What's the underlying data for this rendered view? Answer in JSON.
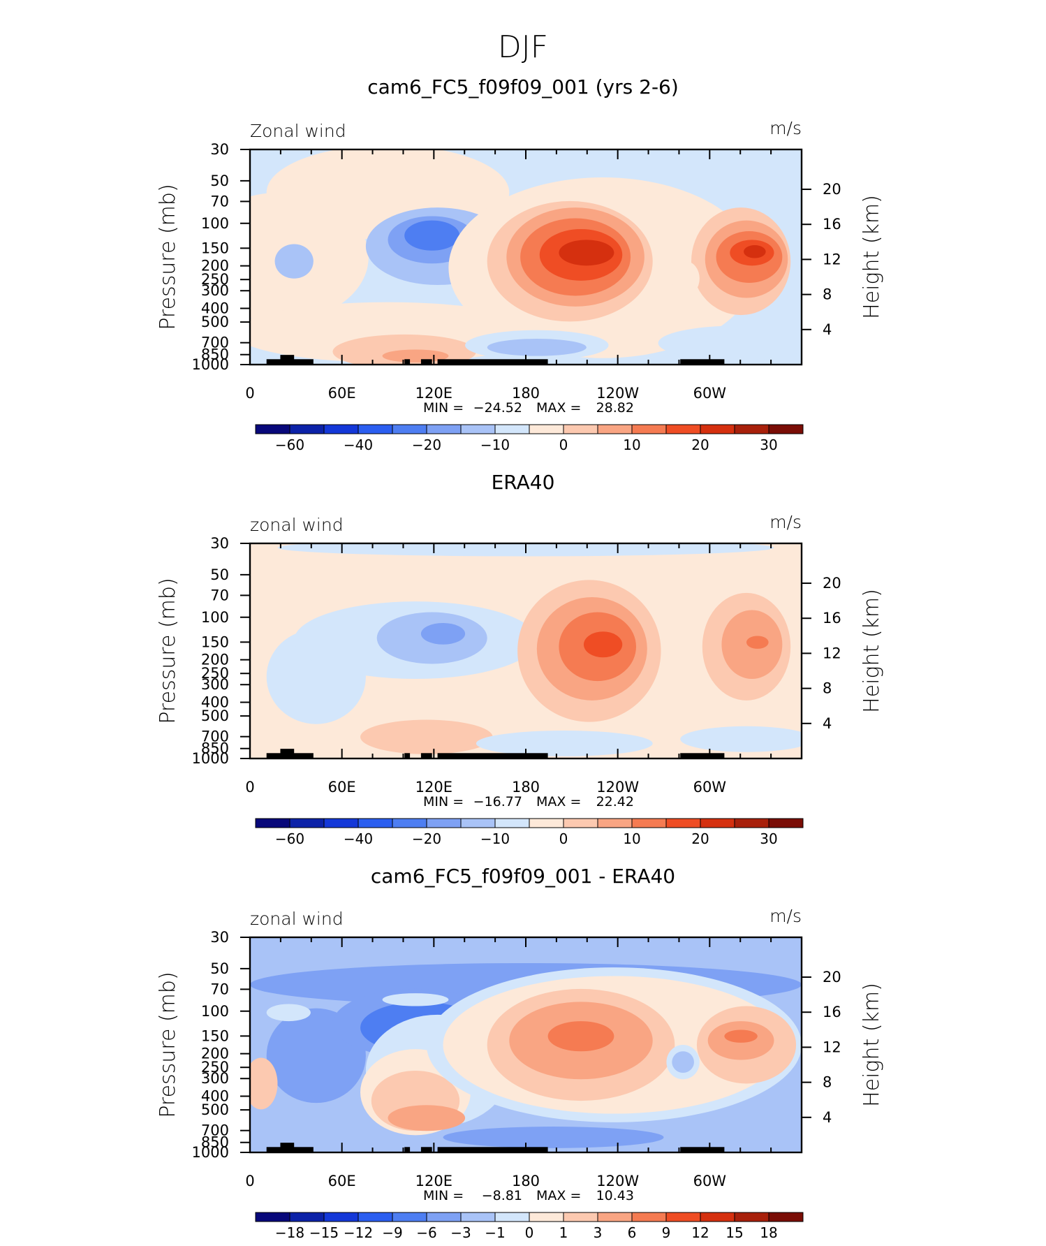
{
  "page_title": "DJF",
  "colors": {
    "main_scale": [
      "#08087a",
      "#0c22a8",
      "#1438d8",
      "#2b5ef0",
      "#4e7ef2",
      "#7ea1f4",
      "#a9c3f7",
      "#d3e6fb",
      "#fde9d9",
      "#fcc9b0",
      "#f9a583",
      "#f57b52",
      "#ef4d24",
      "#d5300f",
      "#a8200b",
      "#7a0d06"
    ],
    "diff_scale": [
      "#08087a",
      "#0c22a8",
      "#1438d8",
      "#2b5ef0",
      "#4e7ef2",
      "#7ea1f4",
      "#a9c3f7",
      "#d3e6fb",
      "#fde9d9",
      "#fcc9b0",
      "#f9a583",
      "#f57b52",
      "#ef4d24",
      "#d5300f",
      "#a8200b",
      "#7a0d06"
    ],
    "topography": "#000000"
  },
  "chart_data": [
    {
      "type": "heatmap",
      "title": "cam6_FC5_f09f09_001 (yrs 2-6)",
      "left_label": "Zonal wind",
      "right_label": "m/s",
      "ylabel": "Pressure (mb)",
      "ylabel_right": "Height (km)",
      "x_ticks": [
        "0",
        "60E",
        "120E",
        "180",
        "120W",
        "60W"
      ],
      "y_ticks": [
        "30",
        "50",
        "70",
        "100",
        "150",
        "200",
        "250",
        "300",
        "400",
        "500",
        "700",
        "850",
        "1000"
      ],
      "y2_ticks": [
        "20",
        "16",
        "12",
        "8",
        "4"
      ],
      "stats": {
        "min_label": "MIN =",
        "min": "−24.52",
        "max_label": "MAX =",
        "max": "28.82"
      },
      "colorbar_labels": [
        "−60",
        "−40",
        "−20",
        "−10",
        "0",
        "10",
        "20",
        "30"
      ],
      "background_level": 7,
      "blobs": [
        {
          "cx": 0.055,
          "cy": 0.5,
          "rx": 0.16,
          "ry": 0.3,
          "level": 8
        },
        {
          "cx": 0.25,
          "cy": 0.2,
          "rx": 0.22,
          "ry": 0.22,
          "level": 8
        },
        {
          "cx": 0.25,
          "cy": 0.85,
          "rx": 0.28,
          "ry": 0.14,
          "level": 8
        },
        {
          "cx": 0.28,
          "cy": 0.94,
          "rx": 0.13,
          "ry": 0.08,
          "level": 9
        },
        {
          "cx": 0.3,
          "cy": 0.96,
          "rx": 0.06,
          "ry": 0.03,
          "level": 10
        },
        {
          "cx": 0.08,
          "cy": 0.52,
          "rx": 0.035,
          "ry": 0.08,
          "level": 6
        },
        {
          "cx": 0.34,
          "cy": 0.45,
          "rx": 0.13,
          "ry": 0.18,
          "level": 6
        },
        {
          "cx": 0.33,
          "cy": 0.42,
          "rx": 0.08,
          "ry": 0.11,
          "level": 5
        },
        {
          "cx": 0.33,
          "cy": 0.4,
          "rx": 0.05,
          "ry": 0.07,
          "level": 4
        },
        {
          "cx": 0.64,
          "cy": 0.55,
          "rx": 0.28,
          "ry": 0.42,
          "level": 8
        },
        {
          "cx": 0.58,
          "cy": 0.52,
          "rx": 0.15,
          "ry": 0.28,
          "level": 9
        },
        {
          "cx": 0.59,
          "cy": 0.5,
          "rx": 0.125,
          "ry": 0.23,
          "level": 10
        },
        {
          "cx": 0.59,
          "cy": 0.5,
          "rx": 0.1,
          "ry": 0.18,
          "level": 11
        },
        {
          "cx": 0.6,
          "cy": 0.49,
          "rx": 0.075,
          "ry": 0.12,
          "level": 12
        },
        {
          "cx": 0.61,
          "cy": 0.48,
          "rx": 0.05,
          "ry": 0.06,
          "level": 13
        },
        {
          "cx": 0.89,
          "cy": 0.52,
          "rx": 0.09,
          "ry": 0.25,
          "level": 9
        },
        {
          "cx": 0.9,
          "cy": 0.51,
          "rx": 0.075,
          "ry": 0.18,
          "level": 10
        },
        {
          "cx": 0.905,
          "cy": 0.5,
          "rx": 0.06,
          "ry": 0.12,
          "level": 11
        },
        {
          "cx": 0.91,
          "cy": 0.48,
          "rx": 0.04,
          "ry": 0.06,
          "level": 12
        },
        {
          "cx": 0.915,
          "cy": 0.475,
          "rx": 0.02,
          "ry": 0.03,
          "level": 13
        },
        {
          "cx": 0.79,
          "cy": 0.6,
          "rx": 0.025,
          "ry": 0.08,
          "level": 8
        },
        {
          "cx": 0.52,
          "cy": 0.91,
          "rx": 0.13,
          "ry": 0.07,
          "level": 7
        },
        {
          "cx": 0.52,
          "cy": 0.92,
          "rx": 0.09,
          "ry": 0.04,
          "level": 6
        },
        {
          "cx": 0.88,
          "cy": 0.9,
          "rx": 0.14,
          "ry": 0.08,
          "level": 7
        },
        {
          "cx": 0.03,
          "cy": 0.04,
          "rx": 0.02,
          "ry": 0.03,
          "level": 7
        }
      ]
    },
    {
      "type": "heatmap",
      "title": "ERA40",
      "left_label": "zonal wind",
      "right_label": "m/s",
      "ylabel": "Pressure (mb)",
      "ylabel_right": "Height (km)",
      "x_ticks": [
        "0",
        "60E",
        "120E",
        "180",
        "120W",
        "60W"
      ],
      "y_ticks": [
        "30",
        "50",
        "70",
        "100",
        "150",
        "200",
        "250",
        "300",
        "400",
        "500",
        "700",
        "850",
        "1000"
      ],
      "y2_ticks": [
        "20",
        "16",
        "12",
        "8",
        "4"
      ],
      "stats": {
        "min_label": "MIN =",
        "min": "−16.77",
        "max_label": "MAX =",
        "max": "22.42"
      },
      "colorbar_labels": [
        "−60",
        "−40",
        "−20",
        "−10",
        "0",
        "10",
        "20",
        "30"
      ],
      "background_level": 8,
      "blobs": [
        {
          "cx": 0.5,
          "cy": 0.02,
          "rx": 0.45,
          "ry": 0.04,
          "level": 7
        },
        {
          "cx": 0.12,
          "cy": 0.62,
          "rx": 0.09,
          "ry": 0.22,
          "level": 7
        },
        {
          "cx": 0.3,
          "cy": 0.45,
          "rx": 0.22,
          "ry": 0.18,
          "level": 7
        },
        {
          "cx": 0.33,
          "cy": 0.44,
          "rx": 0.1,
          "ry": 0.12,
          "level": 6
        },
        {
          "cx": 0.35,
          "cy": 0.42,
          "rx": 0.04,
          "ry": 0.05,
          "level": 5
        },
        {
          "cx": 0.615,
          "cy": 0.5,
          "rx": 0.13,
          "ry": 0.33,
          "level": 9
        },
        {
          "cx": 0.62,
          "cy": 0.49,
          "rx": 0.1,
          "ry": 0.24,
          "level": 10
        },
        {
          "cx": 0.63,
          "cy": 0.48,
          "rx": 0.07,
          "ry": 0.16,
          "level": 11
        },
        {
          "cx": 0.64,
          "cy": 0.47,
          "rx": 0.035,
          "ry": 0.06,
          "level": 12
        },
        {
          "cx": 0.9,
          "cy": 0.48,
          "rx": 0.08,
          "ry": 0.25,
          "level": 9
        },
        {
          "cx": 0.91,
          "cy": 0.47,
          "rx": 0.055,
          "ry": 0.16,
          "level": 10
        },
        {
          "cx": 0.92,
          "cy": 0.46,
          "rx": 0.02,
          "ry": 0.03,
          "level": 11
        },
        {
          "cx": 0.32,
          "cy": 0.9,
          "rx": 0.12,
          "ry": 0.08,
          "level": 9
        },
        {
          "cx": 0.57,
          "cy": 0.93,
          "rx": 0.16,
          "ry": 0.06,
          "level": 7
        },
        {
          "cx": 0.9,
          "cy": 0.91,
          "rx": 0.12,
          "ry": 0.06,
          "level": 7
        }
      ]
    },
    {
      "type": "heatmap",
      "title": "cam6_FC5_f09f09_001 - ERA40",
      "left_label": "zonal wind",
      "right_label": "m/s",
      "ylabel": "Pressure (mb)",
      "ylabel_right": "Height (km)",
      "x_ticks": [
        "0",
        "60E",
        "120E",
        "180",
        "120W",
        "60W"
      ],
      "y_ticks": [
        "30",
        "50",
        "70",
        "100",
        "150",
        "200",
        "250",
        "300",
        "400",
        "500",
        "700",
        "850",
        "1000"
      ],
      "y2_ticks": [
        "20",
        "16",
        "12",
        "8",
        "4"
      ],
      "stats": {
        "min_label": "MIN =",
        "min": "−8.81",
        "max_label": "MAX =",
        "max": "10.43"
      },
      "colorbar_labels": [
        "−18",
        "−15",
        "−12",
        "−9",
        "−6",
        "−3",
        "−1",
        "0",
        "1",
        "3",
        "6",
        "9",
        "12",
        "15",
        "18"
      ],
      "background_level": 6,
      "blobs": [
        {
          "cx": 0.5,
          "cy": 0.22,
          "rx": 0.5,
          "ry": 0.1,
          "level": 5
        },
        {
          "cx": 0.12,
          "cy": 0.55,
          "rx": 0.09,
          "ry": 0.22,
          "level": 5
        },
        {
          "cx": 0.3,
          "cy": 0.4,
          "rx": 0.15,
          "ry": 0.16,
          "level": 5
        },
        {
          "cx": 0.31,
          "cy": 0.42,
          "rx": 0.11,
          "ry": 0.12,
          "level": 4
        },
        {
          "cx": 0.34,
          "cy": 0.62,
          "rx": 0.13,
          "ry": 0.26,
          "level": 7
        },
        {
          "cx": 0.3,
          "cy": 0.72,
          "rx": 0.1,
          "ry": 0.2,
          "level": 8
        },
        {
          "cx": 0.3,
          "cy": 0.76,
          "rx": 0.08,
          "ry": 0.14,
          "level": 9
        },
        {
          "cx": 0.32,
          "cy": 0.84,
          "rx": 0.07,
          "ry": 0.06,
          "level": 10
        },
        {
          "cx": 0.66,
          "cy": 0.5,
          "rx": 0.34,
          "ry": 0.36,
          "level": 7
        },
        {
          "cx": 0.66,
          "cy": 0.5,
          "rx": 0.31,
          "ry": 0.32,
          "level": 8
        },
        {
          "cx": 0.6,
          "cy": 0.5,
          "rx": 0.17,
          "ry": 0.26,
          "level": 9
        },
        {
          "cx": 0.6,
          "cy": 0.48,
          "rx": 0.13,
          "ry": 0.18,
          "level": 10
        },
        {
          "cx": 0.6,
          "cy": 0.46,
          "rx": 0.06,
          "ry": 0.07,
          "level": 11
        },
        {
          "cx": 0.9,
          "cy": 0.5,
          "rx": 0.09,
          "ry": 0.18,
          "level": 9
        },
        {
          "cx": 0.89,
          "cy": 0.48,
          "rx": 0.06,
          "ry": 0.09,
          "level": 10
        },
        {
          "cx": 0.89,
          "cy": 0.46,
          "rx": 0.03,
          "ry": 0.03,
          "level": 11
        },
        {
          "cx": 0.785,
          "cy": 0.58,
          "rx": 0.03,
          "ry": 0.08,
          "level": 7
        },
        {
          "cx": 0.785,
          "cy": 0.58,
          "rx": 0.02,
          "ry": 0.05,
          "level": 6
        },
        {
          "cx": 0.02,
          "cy": 0.68,
          "rx": 0.03,
          "ry": 0.12,
          "level": 9
        },
        {
          "cx": 0.3,
          "cy": 0.29,
          "rx": 0.06,
          "ry": 0.03,
          "level": 7
        },
        {
          "cx": 0.07,
          "cy": 0.35,
          "rx": 0.04,
          "ry": 0.04,
          "level": 7
        },
        {
          "cx": 0.55,
          "cy": 0.93,
          "rx": 0.2,
          "ry": 0.05,
          "level": 5
        }
      ]
    }
  ],
  "topography": [
    [
      0.03,
      0.06,
      0.975
    ],
    [
      0.055,
      0.08,
      0.955
    ],
    [
      0.075,
      0.115,
      0.975
    ],
    [
      0.28,
      0.29,
      0.975
    ],
    [
      0.31,
      0.33,
      0.975
    ],
    [
      0.34,
      0.54,
      0.975
    ],
    [
      0.78,
      0.86,
      0.975
    ]
  ]
}
